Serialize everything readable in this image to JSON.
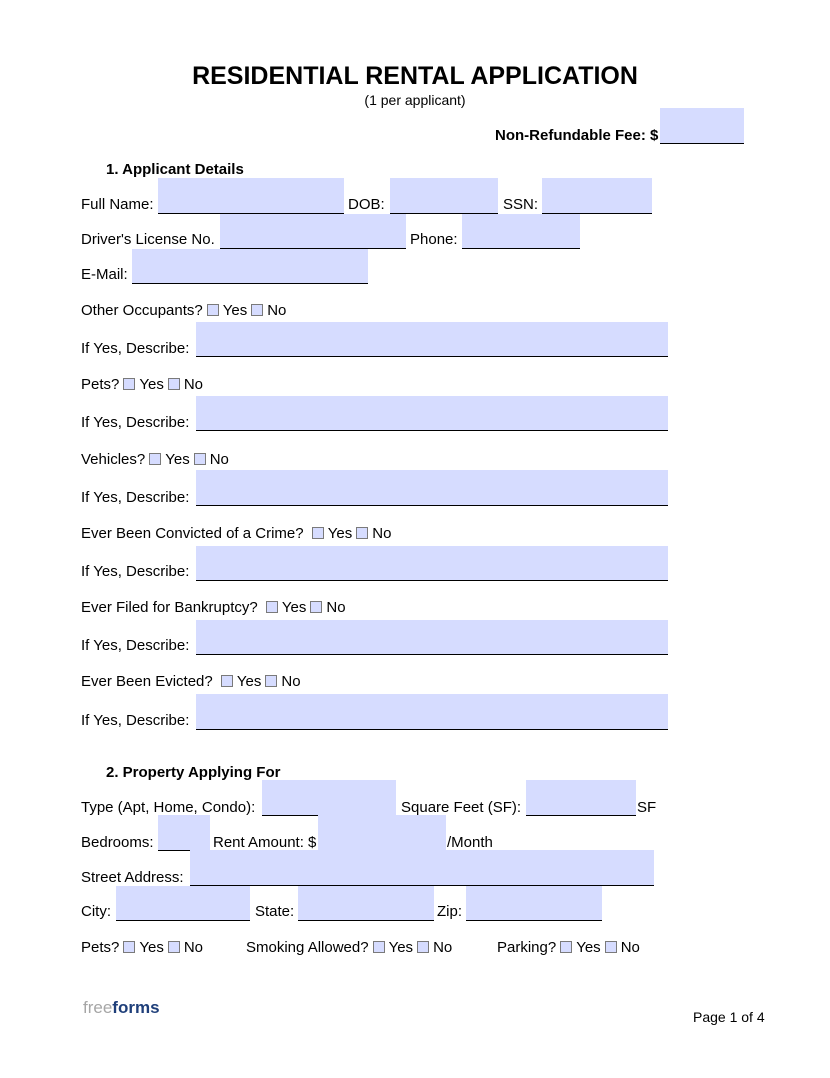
{
  "title": "RESIDENTIAL RENTAL APPLICATION",
  "subtitle": "(1 per applicant)",
  "fee_label": "Non-Refundable Fee: $",
  "colors": {
    "field": "#d6dcff",
    "logo_free": "#a6a6a6",
    "logo_forms": "#1f3f7a"
  },
  "s1": {
    "heading": "1.   Applicant Details",
    "full_name": "Full Name:",
    "dob": "DOB:",
    "ssn": "SSN:",
    "license": "Driver's License No.",
    "phone": "Phone:",
    "email": "E-Mail:",
    "occupants": "Other Occupants?",
    "pets": "Pets?",
    "vehicles": "Vehicles?",
    "crime": "Ever Been Convicted of a Crime?",
    "bankruptcy": "Ever Filed for Bankruptcy?",
    "evicted": "Ever Been Evicted?",
    "describe": "If Yes, Describe:",
    "yes": "Yes",
    "no": "No"
  },
  "s2": {
    "heading": "2.   Property Applying For",
    "type": "Type (Apt, Home, Condo):",
    "sqft": "Square Feet (SF):",
    "sf": "SF",
    "bedrooms": "Bedrooms:",
    "rent": "Rent Amount: $",
    "month": "/Month",
    "street": "Street Address:",
    "city": "City:",
    "state": "State:",
    "zip": "Zip:",
    "pets": "Pets?",
    "smoking": "Smoking Allowed?",
    "parking": "Parking?"
  },
  "footer": {
    "logo_free": "free",
    "logo_forms": "forms",
    "page": "Page 1 of 4"
  }
}
